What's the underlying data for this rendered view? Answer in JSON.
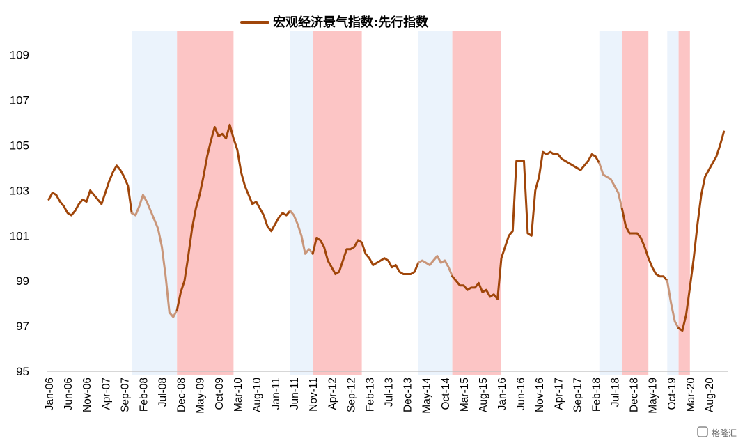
{
  "chart_data": {
    "type": "line",
    "title": "",
    "xlabel": "",
    "ylabel": "",
    "ylim": [
      95,
      110.5
    ],
    "yticks": [
      95,
      97,
      99,
      101,
      103,
      105,
      107,
      109
    ],
    "xtick_labels": [
      "Jan-06",
      "Jun-06",
      "Nov-06",
      "Apr-07",
      "Sep-07",
      "Feb-08",
      "Jul-08",
      "Dec-08",
      "May-09",
      "Oct-09",
      "Mar-10",
      "Aug-10",
      "Jan-11",
      "Jun-11",
      "Nov-11",
      "Apr-12",
      "Sep-12",
      "Feb-13",
      "Jul-13",
      "Dec-13",
      "May-14",
      "Oct-14",
      "Mar-15",
      "Aug-15",
      "Jan-16",
      "Jun-16",
      "Nov-16",
      "Apr-17",
      "Sep-17",
      "Feb-18",
      "Jul-18",
      "Dec-18",
      "May-19",
      "Oct-19",
      "Mar-20",
      "Aug-20"
    ],
    "x_start": "2006-01",
    "x_end": "2021-01",
    "legend": {
      "position": "top-center",
      "label": "宏观经济景气指数:先行指数"
    },
    "colors": {
      "line": "#A0460A",
      "line_faded": "#C9967A",
      "blue_band": "#EBF3FC",
      "red_band": "#FCC5C5",
      "axis": "#BFBFBF"
    },
    "shaded_periods": [
      {
        "kind": "blue",
        "from": "2007-11",
        "to": "2008-11"
      },
      {
        "kind": "red",
        "from": "2008-11",
        "to": "2010-02"
      },
      {
        "kind": "blue",
        "from": "2011-05",
        "to": "2011-11"
      },
      {
        "kind": "red",
        "from": "2011-11",
        "to": "2012-12"
      },
      {
        "kind": "blue",
        "from": "2014-03",
        "to": "2014-12"
      },
      {
        "kind": "red",
        "from": "2014-12",
        "to": "2016-01"
      },
      {
        "kind": "blue",
        "from": "2018-03",
        "to": "2018-09"
      },
      {
        "kind": "red",
        "from": "2018-09",
        "to": "2019-04"
      },
      {
        "kind": "blue",
        "from": "2019-09",
        "to": "2019-12"
      },
      {
        "kind": "red",
        "from": "2019-12",
        "to": "2020-03"
      }
    ],
    "faded_periods": [
      {
        "from": "2007-11",
        "to": "2008-11"
      },
      {
        "from": "2011-05",
        "to": "2011-11"
      },
      {
        "from": "2014-03",
        "to": "2014-12"
      },
      {
        "from": "2018-03",
        "to": "2018-09"
      },
      {
        "from": "2019-09",
        "to": "2019-12"
      }
    ],
    "series": [
      {
        "name": "宏观经济景气指数:先行指数",
        "points": [
          [
            "2006-01",
            102.6
          ],
          [
            "2006-02",
            102.9
          ],
          [
            "2006-03",
            102.8
          ],
          [
            "2006-04",
            102.5
          ],
          [
            "2006-05",
            102.3
          ],
          [
            "2006-06",
            102.0
          ],
          [
            "2006-07",
            101.9
          ],
          [
            "2006-08",
            102.1
          ],
          [
            "2006-09",
            102.4
          ],
          [
            "2006-10",
            102.6
          ],
          [
            "2006-11",
            102.5
          ],
          [
            "2006-12",
            103.0
          ],
          [
            "2007-01",
            102.8
          ],
          [
            "2007-02",
            102.6
          ],
          [
            "2007-03",
            102.4
          ],
          [
            "2007-04",
            102.9
          ],
          [
            "2007-05",
            103.4
          ],
          [
            "2007-06",
            103.8
          ],
          [
            "2007-07",
            104.1
          ],
          [
            "2007-08",
            103.9
          ],
          [
            "2007-09",
            103.6
          ],
          [
            "2007-10",
            103.2
          ],
          [
            "2007-11",
            102.0
          ],
          [
            "2007-12",
            101.9
          ],
          [
            "2008-01",
            102.3
          ],
          [
            "2008-02",
            102.8
          ],
          [
            "2008-03",
            102.5
          ],
          [
            "2008-04",
            102.1
          ],
          [
            "2008-05",
            101.7
          ],
          [
            "2008-06",
            101.3
          ],
          [
            "2008-07",
            100.5
          ],
          [
            "2008-08",
            99.2
          ],
          [
            "2008-09",
            97.6
          ],
          [
            "2008-10",
            97.4
          ],
          [
            "2008-11",
            97.7
          ],
          [
            "2008-12",
            98.5
          ],
          [
            "2009-01",
            99.0
          ],
          [
            "2009-02",
            100.1
          ],
          [
            "2009-03",
            101.3
          ],
          [
            "2009-04",
            102.2
          ],
          [
            "2009-05",
            102.8
          ],
          [
            "2009-06",
            103.6
          ],
          [
            "2009-07",
            104.5
          ],
          [
            "2009-08",
            105.2
          ],
          [
            "2009-09",
            105.8
          ],
          [
            "2009-10",
            105.4
          ],
          [
            "2009-11",
            105.5
          ],
          [
            "2009-12",
            105.3
          ],
          [
            "2010-01",
            105.9
          ],
          [
            "2010-02",
            105.3
          ],
          [
            "2010-03",
            104.8
          ],
          [
            "2010-04",
            103.8
          ],
          [
            "2010-05",
            103.2
          ],
          [
            "2010-06",
            102.8
          ],
          [
            "2010-07",
            102.4
          ],
          [
            "2010-08",
            102.5
          ],
          [
            "2010-09",
            102.2
          ],
          [
            "2010-10",
            101.9
          ],
          [
            "2010-11",
            101.4
          ],
          [
            "2010-12",
            101.2
          ],
          [
            "2011-01",
            101.5
          ],
          [
            "2011-02",
            101.8
          ],
          [
            "2011-03",
            102.0
          ],
          [
            "2011-04",
            101.9
          ],
          [
            "2011-05",
            102.1
          ],
          [
            "2011-06",
            101.9
          ],
          [
            "2011-07",
            101.5
          ],
          [
            "2011-08",
            101.0
          ],
          [
            "2011-09",
            100.2
          ],
          [
            "2011-10",
            100.4
          ],
          [
            "2011-11",
            100.2
          ],
          [
            "2011-12",
            100.9
          ],
          [
            "2012-01",
            100.8
          ],
          [
            "2012-02",
            100.5
          ],
          [
            "2012-03",
            99.9
          ],
          [
            "2012-04",
            99.6
          ],
          [
            "2012-05",
            99.3
          ],
          [
            "2012-06",
            99.4
          ],
          [
            "2012-07",
            99.9
          ],
          [
            "2012-08",
            100.4
          ],
          [
            "2012-09",
            100.4
          ],
          [
            "2012-10",
            100.5
          ],
          [
            "2012-11",
            100.8
          ],
          [
            "2012-12",
            100.7
          ],
          [
            "2013-01",
            100.2
          ],
          [
            "2013-02",
            100.0
          ],
          [
            "2013-03",
            99.7
          ],
          [
            "2013-04",
            99.8
          ],
          [
            "2013-05",
            99.9
          ],
          [
            "2013-06",
            100.0
          ],
          [
            "2013-07",
            99.9
          ],
          [
            "2013-08",
            99.6
          ],
          [
            "2013-09",
            99.7
          ],
          [
            "2013-10",
            99.4
          ],
          [
            "2013-11",
            99.3
          ],
          [
            "2013-12",
            99.3
          ],
          [
            "2014-01",
            99.3
          ],
          [
            "2014-02",
            99.4
          ],
          [
            "2014-03",
            99.8
          ],
          [
            "2014-04",
            99.9
          ],
          [
            "2014-05",
            99.8
          ],
          [
            "2014-06",
            99.7
          ],
          [
            "2014-07",
            99.9
          ],
          [
            "2014-08",
            100.1
          ],
          [
            "2014-09",
            99.8
          ],
          [
            "2014-10",
            99.9
          ],
          [
            "2014-11",
            99.6
          ],
          [
            "2014-12",
            99.2
          ],
          [
            "2015-01",
            99.0
          ],
          [
            "2015-02",
            98.8
          ],
          [
            "2015-03",
            98.8
          ],
          [
            "2015-04",
            98.6
          ],
          [
            "2015-05",
            98.7
          ],
          [
            "2015-06",
            98.7
          ],
          [
            "2015-07",
            98.9
          ],
          [
            "2015-08",
            98.5
          ],
          [
            "2015-09",
            98.6
          ],
          [
            "2015-10",
            98.3
          ],
          [
            "2015-11",
            98.4
          ],
          [
            "2015-12",
            98.2
          ],
          [
            "2016-01",
            100.0
          ],
          [
            "2016-02",
            100.5
          ],
          [
            "2016-03",
            101.0
          ],
          [
            "2016-04",
            101.2
          ],
          [
            "2016-05",
            104.3
          ],
          [
            "2016-06",
            104.3
          ],
          [
            "2016-07",
            104.3
          ],
          [
            "2016-08",
            101.1
          ],
          [
            "2016-09",
            101.0
          ],
          [
            "2016-10",
            103.0
          ],
          [
            "2016-11",
            103.6
          ],
          [
            "2016-12",
            104.7
          ],
          [
            "2017-01",
            104.6
          ],
          [
            "2017-02",
            104.7
          ],
          [
            "2017-03",
            104.6
          ],
          [
            "2017-04",
            104.6
          ],
          [
            "2017-05",
            104.4
          ],
          [
            "2017-06",
            104.3
          ],
          [
            "2017-07",
            104.2
          ],
          [
            "2017-08",
            104.1
          ],
          [
            "2017-09",
            104.0
          ],
          [
            "2017-10",
            103.9
          ],
          [
            "2017-11",
            104.1
          ],
          [
            "2017-12",
            104.3
          ],
          [
            "2018-01",
            104.6
          ],
          [
            "2018-02",
            104.5
          ],
          [
            "2018-03",
            104.2
          ],
          [
            "2018-04",
            103.7
          ],
          [
            "2018-05",
            103.6
          ],
          [
            "2018-06",
            103.5
          ],
          [
            "2018-07",
            103.2
          ],
          [
            "2018-08",
            102.9
          ],
          [
            "2018-09",
            102.2
          ],
          [
            "2018-10",
            101.4
          ],
          [
            "2018-11",
            101.1
          ],
          [
            "2018-12",
            101.1
          ],
          [
            "2019-01",
            101.1
          ],
          [
            "2019-02",
            100.9
          ],
          [
            "2019-03",
            100.5
          ],
          [
            "2019-04",
            100.0
          ],
          [
            "2019-05",
            99.6
          ],
          [
            "2019-06",
            99.3
          ],
          [
            "2019-07",
            99.2
          ],
          [
            "2019-08",
            99.2
          ],
          [
            "2019-09",
            99.0
          ],
          [
            "2019-10",
            98.0
          ],
          [
            "2019-11",
            97.2
          ],
          [
            "2019-12",
            96.9
          ],
          [
            "2020-01",
            96.8
          ],
          [
            "2020-02",
            97.5
          ],
          [
            "2020-03",
            98.7
          ],
          [
            "2020-04",
            100.0
          ],
          [
            "2020-05",
            101.5
          ],
          [
            "2020-06",
            102.8
          ],
          [
            "2020-07",
            103.6
          ],
          [
            "2020-08",
            103.9
          ],
          [
            "2020-09",
            104.2
          ],
          [
            "2020-10",
            104.5
          ],
          [
            "2020-11",
            105.0
          ],
          [
            "2020-12",
            105.6
          ]
        ]
      }
    ]
  },
  "watermark": {
    "text": "格隆汇"
  }
}
